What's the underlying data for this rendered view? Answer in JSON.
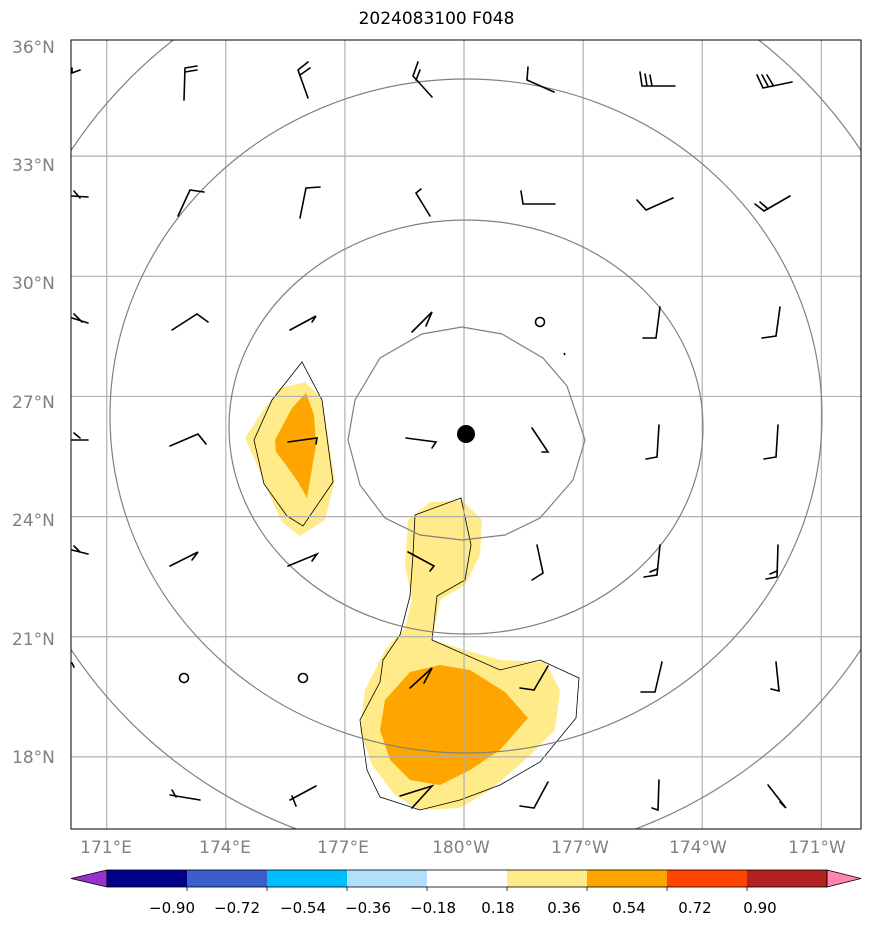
{
  "title": "2024083100 F048",
  "map": {
    "lat_ticks": [
      "36°N",
      "33°N",
      "30°N",
      "27°N",
      "24°N",
      "21°N",
      "18°N"
    ],
    "lon_ticks": [
      "171°E",
      "174°E",
      "177°E",
      "180°W",
      "177°W",
      "174°W",
      "171°W"
    ],
    "lat_values": [
      36,
      33,
      30,
      27,
      24,
      21,
      18
    ],
    "lon_values": [
      171,
      174,
      177,
      180,
      183,
      186,
      189
    ],
    "extent": {
      "lon_min": 170.1,
      "lon_max": 190.0,
      "lat_min": 16.2,
      "lat_max": 35.9
    },
    "storm_center": {
      "lon": 180.1,
      "lat": 26.1
    },
    "range_ring_color": "#808080",
    "grid_color": "#b0b0b0"
  },
  "colorbar": {
    "ticks": [
      "−0.90",
      "−0.72",
      "−0.54",
      "−0.36",
      "−0.18",
      "0.18",
      "0.36",
      "0.54",
      "0.72",
      "0.90"
    ],
    "colors": [
      "#9932cc",
      "#00008b",
      "#3a5fcd",
      "#00bfff",
      "#b0e0fa",
      "#ffffff",
      "#ffeb8a",
      "#ffa500",
      "#ff4500",
      "#b22222",
      "#ff86b0"
    ]
  },
  "field_colors": {
    "light": "#ffeb8a",
    "mid": "#ffa500"
  }
}
